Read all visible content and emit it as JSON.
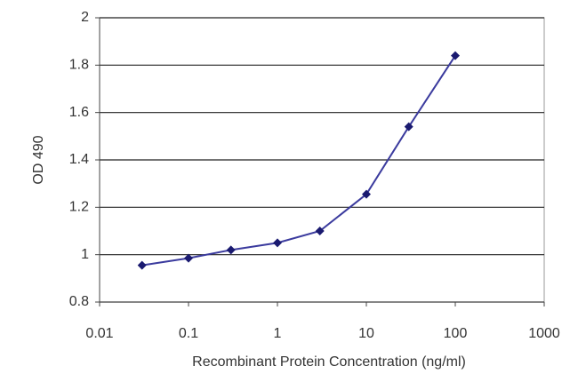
{
  "chart_data": {
    "type": "line",
    "x_label": "Recombinant Protein Concentration (ng/ml)",
    "y_label": "OD 490",
    "x": [
      0.03,
      0.1,
      0.3,
      1,
      3,
      10,
      30,
      100
    ],
    "series": [
      {
        "color": "#3b3b9e",
        "values": [
          0.955,
          0.985,
          1.02,
          1.05,
          1.1,
          1.255,
          1.54,
          1.84
        ]
      }
    ],
    "xlim": [
      0.01,
      1000
    ],
    "xticks": [
      0.01,
      0.1,
      1,
      10,
      100,
      1000
    ],
    "xlog": true,
    "ylim": [
      0.8,
      2
    ],
    "yticks": [
      0.8,
      1,
      1.2,
      1.4,
      1.6,
      1.8,
      2
    ],
    "grid": true
  }
}
